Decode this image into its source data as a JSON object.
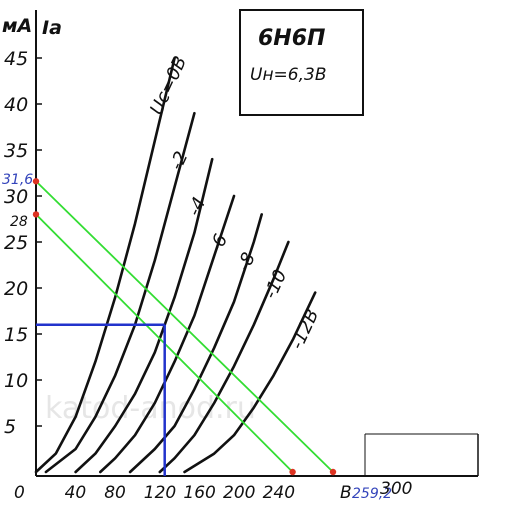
{
  "chart_data": {
    "type": "line",
    "title": "6Н6П",
    "subtitle": "Uн=6,3В",
    "y_unit": "мА",
    "y_label": "Iа",
    "x_unit": "В",
    "xlim": [
      0,
      310
    ],
    "ylim": [
      0,
      45
    ],
    "x_ticks": [
      "0",
      "40",
      "80",
      "120",
      "160",
      "200",
      "240"
    ],
    "y_ticks": [
      "5",
      "10",
      "15",
      "20",
      "25",
      "30",
      "35",
      "40",
      "45"
    ],
    "grid": false,
    "watermark": "katod-anod.ru",
    "series": [
      {
        "name": "Uс=0В",
        "label": "Uс=0В",
        "x": [
          0,
          20,
          40,
          60,
          80,
          100,
          120,
          140
        ],
        "y": [
          0,
          2,
          6,
          12,
          19,
          27,
          36,
          45
        ]
      },
      {
        "name": "-2",
        "label": "-2",
        "x": [
          10,
          40,
          60,
          80,
          100,
          120,
          140,
          160
        ],
        "y": [
          0,
          2.5,
          6,
          10.5,
          16,
          23,
          31,
          39
        ]
      },
      {
        "name": "-4",
        "label": "-4",
        "x": [
          40,
          60,
          80,
          100,
          120,
          140,
          160,
          178
        ],
        "y": [
          0,
          2,
          5,
          8.5,
          13,
          19,
          26,
          34
        ]
      },
      {
        "name": "-6",
        "label": "-6",
        "x": [
          65,
          80,
          100,
          120,
          140,
          160,
          180,
          200
        ],
        "y": [
          0,
          1.5,
          4,
          7.5,
          12,
          17,
          23.5,
          30
        ]
      },
      {
        "name": "-8",
        "label": "-8",
        "x": [
          95,
          120,
          140,
          160,
          180,
          200,
          220,
          228
        ],
        "y": [
          0,
          2.5,
          5,
          9,
          13.5,
          18.5,
          25,
          28
        ]
      },
      {
        "name": "-10",
        "label": "-10",
        "x": [
          125,
          140,
          160,
          180,
          200,
          220,
          240,
          255
        ],
        "y": [
          0,
          1.5,
          4,
          7.5,
          11.5,
          16,
          21,
          25
        ]
      },
      {
        "name": "-12В",
        "label": "-12В",
        "x": [
          150,
          180,
          200,
          220,
          240,
          260,
          282
        ],
        "y": [
          0,
          2,
          4,
          7,
          10.5,
          14.5,
          19.5
        ]
      }
    ],
    "load_lines": [
      {
        "x": [
          0,
          300
        ],
        "y": [
          31.6,
          0
        ]
      },
      {
        "x": [
          0,
          259.2
        ],
        "y": [
          28,
          0
        ]
      }
    ],
    "operating_point": {
      "x": 130,
      "y": 16
    },
    "annotations": {
      "y1": "31,6",
      "y2": "28",
      "x1": "259,2",
      "x2": "300"
    },
    "colors": {
      "curves": "#111111",
      "load_lines": "#33dd33",
      "operating_point": "#2233cc",
      "annotation_text": "#3344bb",
      "markers": "#dd3322"
    }
  }
}
